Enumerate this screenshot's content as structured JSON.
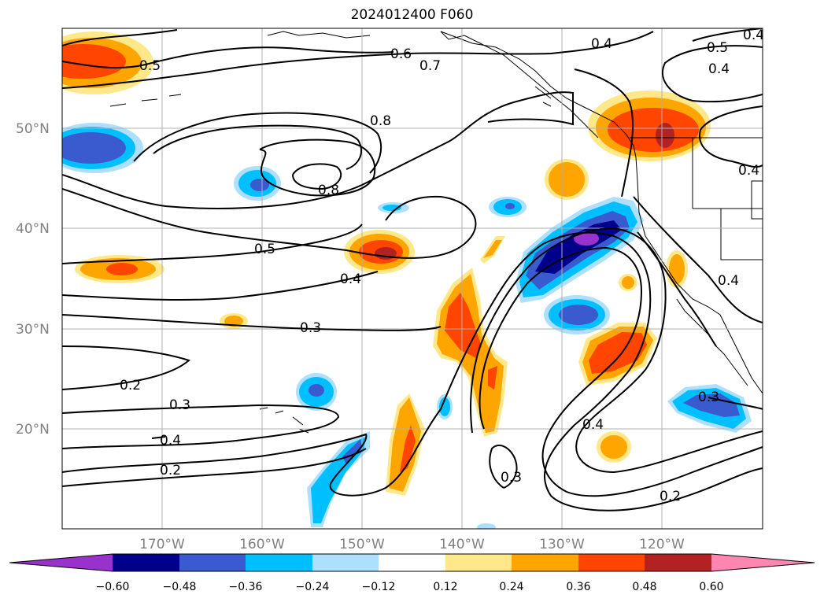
{
  "title": "2024012400 F060",
  "colors": {
    "neg_060": "#9932CC",
    "neg_048": "#00008B",
    "neg_036": "#3A5BCF",
    "neg_024": "#00BFFF",
    "neg_012": "#ADDFFF",
    "zero": "#FFFFFF",
    "pos_012": "#FFE88A",
    "pos_024": "#FFA500",
    "pos_036": "#FF4500",
    "pos_048": "#B22222",
    "pos_060": "#FF86B0"
  },
  "map": {
    "lon_range": [
      -180,
      -110
    ],
    "lat_range": [
      10,
      60
    ],
    "lat_ticks": [
      "20°N",
      "30°N",
      "40°N",
      "50°N"
    ],
    "lon_ticks": [
      "170°W",
      "160°W",
      "150°W",
      "140°W",
      "130°W",
      "120°W"
    ],
    "contour_labels": [
      "0.5",
      "0.6",
      "0.7",
      "0.4",
      "0.5",
      "0.4",
      "0.8",
      "0.8",
      "0.4",
      "0.5",
      "0.4",
      "0.3",
      "0.2",
      "0.3",
      "0.4",
      "0.2",
      "0.3",
      "0.4",
      "0.2",
      "0.4",
      "0.3",
      "0.4"
    ]
  },
  "colorbar": {
    "ticks": [
      "−0.60",
      "−0.48",
      "−0.36",
      "−0.24",
      "−0.12",
      "0.12",
      "0.24",
      "0.36",
      "0.48",
      "0.60"
    ]
  }
}
